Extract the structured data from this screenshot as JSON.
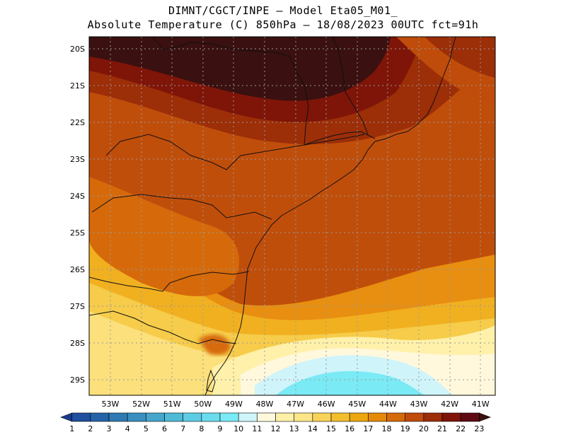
{
  "title": {
    "line1": "DIMNT/CGCT/INPE –  Model Eta05_M01_",
    "line2": "Absolute Temperature (C) 850hPa –  18/08/2023 00UTC fct=91h"
  },
  "axes": {
    "longitudes": [
      "53W",
      "52W",
      "51W",
      "50W",
      "49W",
      "48W",
      "47W",
      "46W",
      "45W",
      "44W",
      "43W",
      "42W",
      "41W"
    ],
    "latitudes": [
      "20S",
      "21S",
      "22S",
      "23S",
      "24S",
      "25S",
      "26S",
      "27S",
      "28S",
      "29S"
    ]
  },
  "colorbar": {
    "labels": [
      "1",
      "2",
      "3",
      "4",
      "5",
      "6",
      "7",
      "8",
      "9",
      "10",
      "11",
      "12",
      "13",
      "14",
      "15",
      "16",
      "17",
      "18",
      "19",
      "20",
      "21",
      "22",
      "23"
    ],
    "colors": [
      "#1a3a8f",
      "#1f4f9e",
      "#2563a8",
      "#2f7ab3",
      "#3a8fc0",
      "#45a5cc",
      "#4fbad8",
      "#5ccde4",
      "#6adcee",
      "#7aeaf5",
      "#cff4fa",
      "#fff8dc",
      "#fff0a8",
      "#fde68a",
      "#f8d35a",
      "#f3be2e",
      "#eda60d",
      "#e48a08",
      "#d66a0a",
      "#bf4c0a",
      "#9c2e08",
      "#7e1508",
      "#5e0a12",
      "#3a1010"
    ],
    "low_color": "#1a3a8f",
    "high_color": "#3a1010"
  }
}
